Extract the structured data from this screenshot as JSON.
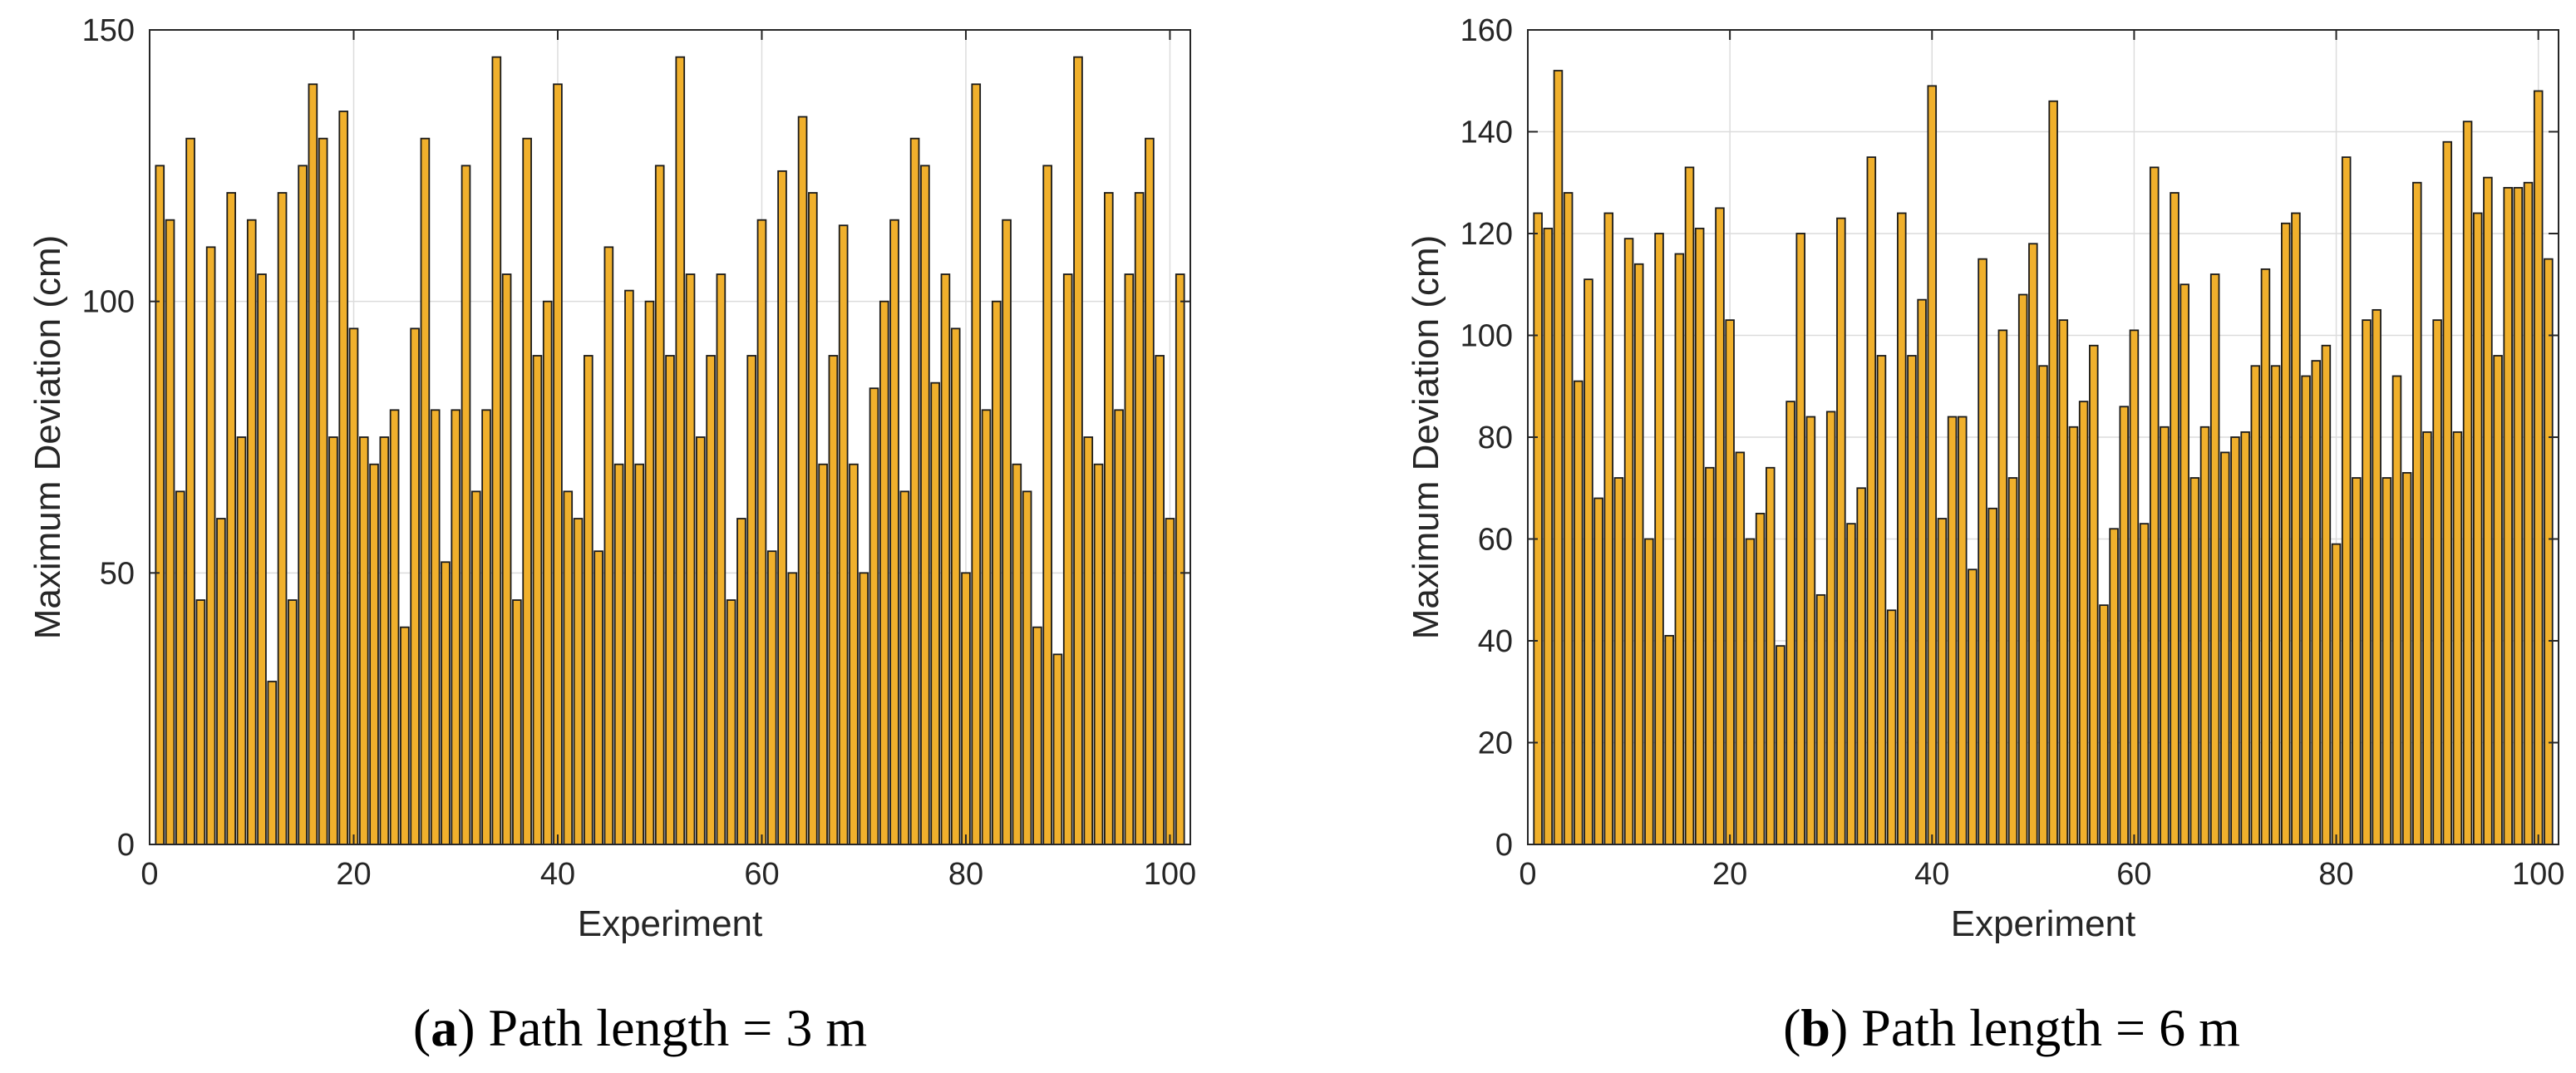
{
  "colors": {
    "bar_fill": "#f0b02c",
    "bar_edge": "#1a1a1a",
    "grid": "#dcdcdc",
    "axis": "#262626"
  },
  "chart_data": [
    {
      "type": "bar",
      "id": "a",
      "caption": {
        "letter": "a",
        "text": "Path length = 3 m",
        "open": "(",
        "close": ")"
      },
      "xlabel": "Experiment",
      "ylabel": "Maximum Deviation (cm)",
      "xlim": [
        0,
        102
      ],
      "ylim": [
        0,
        150
      ],
      "xticks": [
        0,
        20,
        40,
        60,
        80,
        100
      ],
      "xtick_labels": [
        "0",
        "20",
        "40",
        "60",
        "80",
        "100"
      ],
      "yticks": [
        0,
        50,
        100,
        150
      ],
      "ytick_labels": [
        "0",
        "50",
        "100",
        "150"
      ],
      "grid": true,
      "x": [
        1,
        2,
        3,
        4,
        5,
        6,
        7,
        8,
        9,
        10,
        11,
        12,
        13,
        14,
        15,
        16,
        17,
        18,
        19,
        20,
        21,
        22,
        23,
        24,
        25,
        26,
        27,
        28,
        29,
        30,
        31,
        32,
        33,
        34,
        35,
        36,
        37,
        38,
        39,
        40,
        41,
        42,
        43,
        44,
        45,
        46,
        47,
        48,
        49,
        50,
        51,
        52,
        53,
        54,
        55,
        56,
        57,
        58,
        59,
        60,
        61,
        62,
        63,
        64,
        65,
        66,
        67,
        68,
        69,
        70,
        71,
        72,
        73,
        74,
        75,
        76,
        77,
        78,
        79,
        80,
        81,
        82,
        83,
        84,
        85,
        86,
        87,
        88,
        89,
        90,
        91,
        92,
        93,
        94,
        95,
        96,
        97,
        98,
        99,
        100,
        101
      ],
      "values": [
        125,
        115,
        65,
        130,
        45,
        110,
        60,
        120,
        75,
        115,
        105,
        30,
        120,
        45,
        125,
        140,
        130,
        75,
        135,
        95,
        75,
        70,
        75,
        80,
        40,
        95,
        130,
        80,
        52,
        80,
        125,
        65,
        80,
        145,
        105,
        45,
        130,
        90,
        100,
        140,
        65,
        60,
        90,
        54,
        110,
        70,
        102,
        70,
        100,
        125,
        90,
        145,
        105,
        75,
        90,
        105,
        45,
        60,
        90,
        115,
        54,
        124,
        50,
        134,
        120,
        70,
        90,
        114,
        70,
        50,
        84,
        100,
        115,
        65,
        130,
        125,
        85,
        105,
        95,
        50,
        140,
        80,
        100,
        115,
        70,
        65,
        40,
        125,
        35,
        105,
        145,
        75,
        70,
        120,
        80,
        105,
        120,
        130,
        90,
        60,
        105
      ]
    },
    {
      "type": "bar",
      "id": "b",
      "caption": {
        "letter": "b",
        "text": "Path length = 6 m",
        "open": "(",
        "close": ")"
      },
      "xlabel": "Experiment",
      "ylabel": "Maximum Deviation (cm)",
      "xlim": [
        0,
        102
      ],
      "ylim": [
        0,
        160
      ],
      "xticks": [
        0,
        20,
        40,
        60,
        80,
        100
      ],
      "xtick_labels": [
        "0",
        "20",
        "40",
        "60",
        "80",
        "100"
      ],
      "yticks": [
        0,
        20,
        40,
        60,
        80,
        100,
        120,
        140,
        160
      ],
      "ytick_labels": [
        "0",
        "20",
        "40",
        "60",
        "80",
        "100",
        "120",
        "140",
        "160"
      ],
      "grid": true,
      "x": [
        1,
        2,
        3,
        4,
        5,
        6,
        7,
        8,
        9,
        10,
        11,
        12,
        13,
        14,
        15,
        16,
        17,
        18,
        19,
        20,
        21,
        22,
        23,
        24,
        25,
        26,
        27,
        28,
        29,
        30,
        31,
        32,
        33,
        34,
        35,
        36,
        37,
        38,
        39,
        40,
        41,
        42,
        43,
        44,
        45,
        46,
        47,
        48,
        49,
        50,
        51,
        52,
        53,
        54,
        55,
        56,
        57,
        58,
        59,
        60,
        61,
        62,
        63,
        64,
        65,
        66,
        67,
        68,
        69,
        70,
        71,
        72,
        73,
        74,
        75,
        76,
        77,
        78,
        79,
        80,
        81,
        82,
        83,
        84,
        85,
        86,
        87,
        88,
        89,
        90,
        91,
        92,
        93,
        94,
        95,
        96,
        97,
        98,
        99,
        100,
        101
      ],
      "values": [
        124,
        121,
        152,
        128,
        91,
        111,
        68,
        124,
        72,
        119,
        114,
        60,
        120,
        41,
        116,
        133,
        121,
        74,
        125,
        103,
        77,
        60,
        65,
        74,
        39,
        87,
        120,
        84,
        49,
        85,
        123,
        63,
        70,
        135,
        96,
        46,
        124,
        96,
        107,
        149,
        64,
        84,
        84,
        54,
        115,
        66,
        101,
        72,
        108,
        118,
        94,
        146,
        103,
        82,
        87,
        98,
        47,
        62,
        86,
        101,
        63,
        133,
        82,
        128,
        110,
        72,
        82,
        112,
        77,
        80,
        81,
        94,
        113,
        94,
        122,
        124,
        92,
        95,
        98,
        59,
        135,
        72,
        103,
        105,
        72,
        92,
        73,
        130,
        81,
        103,
        138,
        81,
        142,
        124,
        131,
        96,
        129,
        129,
        130,
        148,
        115
      ]
    }
  ]
}
